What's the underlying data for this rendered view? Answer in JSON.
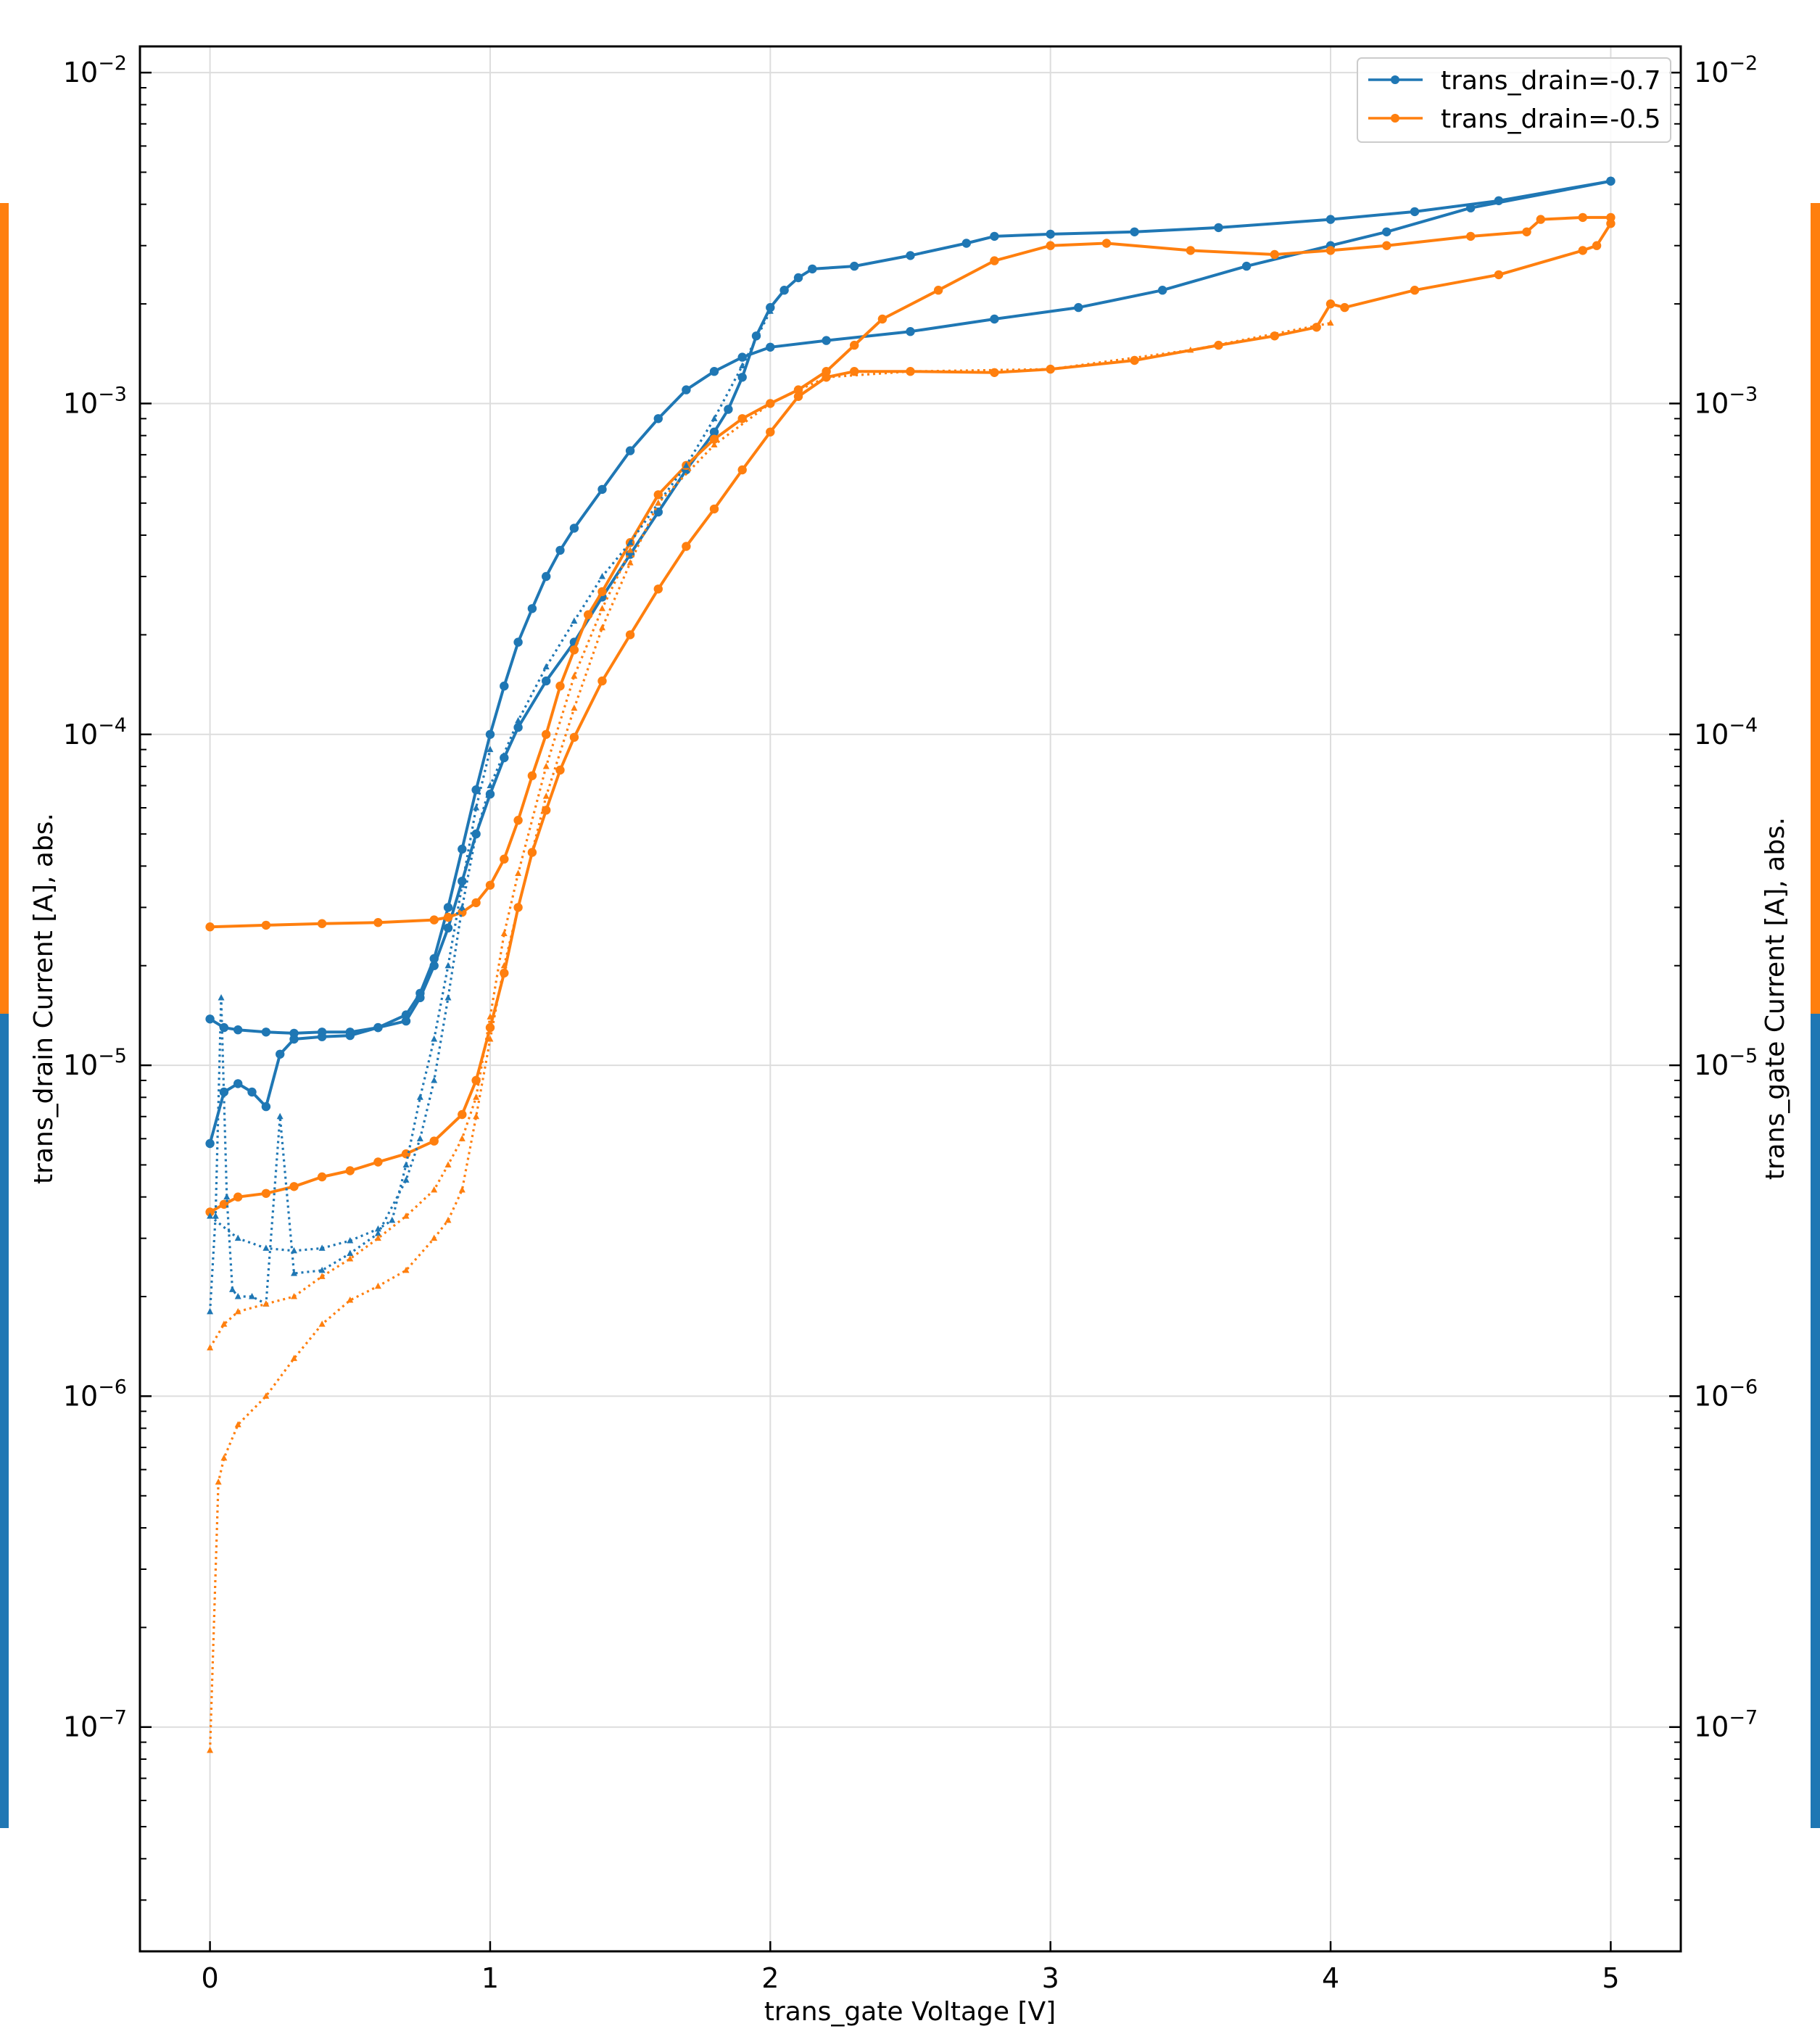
{
  "chart_data": {
    "type": "line",
    "title": "",
    "xlabel": "trans_gate Voltage [V]",
    "ylabel_left": "trans_drain Current [A], abs.",
    "ylabel_right": "trans_gate Current [A], abs.",
    "xlim": [
      -0.25,
      5.25
    ],
    "ylim": [
      2.1e-08,
      0.012
    ],
    "yscale": "log",
    "grid": true,
    "legend_position": "top-right",
    "x_ticks": [
      {
        "value": 0,
        "label": "0"
      },
      {
        "value": 1,
        "label": "1"
      },
      {
        "value": 2,
        "label": "2"
      },
      {
        "value": 3,
        "label": "3"
      },
      {
        "value": 4,
        "label": "4"
      },
      {
        "value": 5,
        "label": "5"
      }
    ],
    "y_ticks": [
      {
        "value": 1e-07,
        "label": "10",
        "exp": "−7"
      },
      {
        "value": 1e-06,
        "label": "10",
        "exp": "−6"
      },
      {
        "value": 1e-05,
        "label": "10",
        "exp": "−5"
      },
      {
        "value": 0.0001,
        "label": "10",
        "exp": "−4"
      },
      {
        "value": 0.001,
        "label": "10",
        "exp": "−3"
      },
      {
        "value": 0.01,
        "label": "10",
        "exp": "−2"
      }
    ],
    "legend": [
      {
        "label": "trans_drain=-0.7",
        "color": "#1f77b4"
      },
      {
        "label": "trans_drain=-0.5",
        "color": "#ff7f0e"
      }
    ],
    "series": [
      {
        "name": "trans_drain=-0.7",
        "color": "#1f77b4",
        "quantity": "drain",
        "style": "solid",
        "sweep": "forward",
        "points": [
          [
            0,
            5.8e-06
          ],
          [
            0.05,
            8.3e-06
          ],
          [
            0.1,
            8.8e-06
          ],
          [
            0.15,
            8.3e-06
          ],
          [
            0.2,
            7.5e-06
          ],
          [
            0.25,
            1.08e-05
          ],
          [
            0.3,
            1.2e-05
          ],
          [
            0.4,
            1.22e-05
          ],
          [
            0.5,
            1.23e-05
          ],
          [
            0.6,
            1.3e-05
          ],
          [
            0.7,
            1.36e-05
          ],
          [
            0.75,
            1.6e-05
          ],
          [
            0.8,
            2e-05
          ],
          [
            0.85,
            2.6e-05
          ],
          [
            0.9,
            3.6e-05
          ],
          [
            0.95,
            5e-05
          ],
          [
            1.0,
            6.6e-05
          ],
          [
            1.05,
            8.5e-05
          ],
          [
            1.1,
            0.000105
          ],
          [
            1.2,
            0.000145
          ],
          [
            1.3,
            0.00019
          ],
          [
            1.4,
            0.00026
          ],
          [
            1.5,
            0.00035
          ],
          [
            1.6,
            0.00047
          ],
          [
            1.7,
            0.00063
          ],
          [
            1.8,
            0.00082
          ],
          [
            1.85,
            0.00096
          ],
          [
            1.9,
            0.0012
          ],
          [
            1.95,
            0.0016
          ],
          [
            2.0,
            0.00195
          ],
          [
            2.05,
            0.0022
          ],
          [
            2.1,
            0.0024
          ],
          [
            2.15,
            0.00255
          ],
          [
            2.3,
            0.0026
          ],
          [
            2.5,
            0.0028
          ],
          [
            2.7,
            0.00305
          ],
          [
            2.8,
            0.0032
          ],
          [
            3.0,
            0.00325
          ],
          [
            3.3,
            0.0033
          ],
          [
            3.6,
            0.0034
          ],
          [
            4.0,
            0.0036
          ],
          [
            4.3,
            0.0038
          ],
          [
            4.6,
            0.0041
          ],
          [
            5.0,
            0.0047
          ]
        ]
      },
      {
        "name": "trans_drain=-0.7",
        "color": "#1f77b4",
        "quantity": "drain",
        "style": "solid",
        "sweep": "reverse",
        "points": [
          [
            5.0,
            0.0047
          ],
          [
            4.5,
            0.0039
          ],
          [
            4.2,
            0.0033
          ],
          [
            4.0,
            0.003
          ],
          [
            3.7,
            0.0026
          ],
          [
            3.4,
            0.0022
          ],
          [
            3.1,
            0.00195
          ],
          [
            2.8,
            0.0018
          ],
          [
            2.5,
            0.00165
          ],
          [
            2.2,
            0.00155
          ],
          [
            2.0,
            0.00148
          ],
          [
            1.9,
            0.00138
          ],
          [
            1.8,
            0.00125
          ],
          [
            1.7,
            0.0011
          ],
          [
            1.6,
            0.0009
          ],
          [
            1.5,
            0.00072
          ],
          [
            1.4,
            0.00055
          ],
          [
            1.3,
            0.00042
          ],
          [
            1.25,
            0.00036
          ],
          [
            1.2,
            0.0003
          ],
          [
            1.15,
            0.00024
          ],
          [
            1.1,
            0.00019
          ],
          [
            1.05,
            0.00014
          ],
          [
            1.0,
            0.0001
          ],
          [
            0.95,
            6.8e-05
          ],
          [
            0.9,
            4.5e-05
          ],
          [
            0.85,
            3e-05
          ],
          [
            0.8,
            2.1e-05
          ],
          [
            0.75,
            1.65e-05
          ],
          [
            0.7,
            1.42e-05
          ],
          [
            0.6,
            1.3e-05
          ],
          [
            0.5,
            1.26e-05
          ],
          [
            0.4,
            1.26e-05
          ],
          [
            0.3,
            1.25e-05
          ],
          [
            0.2,
            1.26e-05
          ],
          [
            0.1,
            1.28e-05
          ],
          [
            0.05,
            1.3e-05
          ],
          [
            0,
            1.38e-05
          ]
        ]
      },
      {
        "name": "trans_drain=-0.5",
        "color": "#ff7f0e",
        "quantity": "drain",
        "style": "solid",
        "sweep": "forward",
        "points": [
          [
            0,
            3.6e-06
          ],
          [
            0.05,
            3.8e-06
          ],
          [
            0.1,
            4e-06
          ],
          [
            0.2,
            4.1e-06
          ],
          [
            0.3,
            4.3e-06
          ],
          [
            0.4,
            4.6e-06
          ],
          [
            0.5,
            4.8e-06
          ],
          [
            0.6,
            5.1e-06
          ],
          [
            0.7,
            5.4e-06
          ],
          [
            0.8,
            5.9e-06
          ],
          [
            0.9,
            7.1e-06
          ],
          [
            0.95,
            9e-06
          ],
          [
            1.0,
            1.3e-05
          ],
          [
            1.05,
            1.9e-05
          ],
          [
            1.1,
            3e-05
          ],
          [
            1.15,
            4.4e-05
          ],
          [
            1.2,
            5.9e-05
          ],
          [
            1.25,
            7.8e-05
          ],
          [
            1.3,
            9.8e-05
          ],
          [
            1.4,
            0.000145
          ],
          [
            1.5,
            0.0002
          ],
          [
            1.6,
            0.000275
          ],
          [
            1.7,
            0.00037
          ],
          [
            1.8,
            0.00048
          ],
          [
            1.9,
            0.00063
          ],
          [
            2.0,
            0.00082
          ],
          [
            2.1,
            0.00105
          ],
          [
            2.2,
            0.0012
          ],
          [
            2.3,
            0.00125
          ],
          [
            2.5,
            0.00125
          ],
          [
            2.8,
            0.00124
          ],
          [
            3.0,
            0.00127
          ],
          [
            3.3,
            0.00135
          ],
          [
            3.6,
            0.0015
          ],
          [
            3.8,
            0.0016
          ],
          [
            3.95,
            0.0017
          ],
          [
            4.0,
            0.002
          ],
          [
            4.05,
            0.00195
          ],
          [
            4.3,
            0.0022
          ],
          [
            4.6,
            0.00245
          ],
          [
            4.9,
            0.0029
          ],
          [
            4.95,
            0.003
          ],
          [
            5.0,
            0.0035
          ]
        ]
      },
      {
        "name": "trans_drain=-0.5",
        "color": "#ff7f0e",
        "quantity": "drain",
        "style": "solid",
        "sweep": "reverse",
        "points": [
          [
            5.0,
            0.00365
          ],
          [
            4.9,
            0.00365
          ],
          [
            4.75,
            0.0036
          ],
          [
            4.7,
            0.0033
          ],
          [
            4.5,
            0.0032
          ],
          [
            4.2,
            0.003
          ],
          [
            4.0,
            0.0029
          ],
          [
            3.8,
            0.00282
          ],
          [
            3.5,
            0.0029
          ],
          [
            3.2,
            0.00305
          ],
          [
            3.0,
            0.003
          ],
          [
            2.8,
            0.0027
          ],
          [
            2.6,
            0.0022
          ],
          [
            2.4,
            0.0018
          ],
          [
            2.3,
            0.0015
          ],
          [
            2.2,
            0.00125
          ],
          [
            2.1,
            0.0011
          ],
          [
            2.0,
            0.001
          ],
          [
            1.9,
            0.0009
          ],
          [
            1.8,
            0.00078
          ],
          [
            1.7,
            0.00065
          ],
          [
            1.6,
            0.00053
          ],
          [
            1.5,
            0.00038
          ],
          [
            1.4,
            0.00027
          ],
          [
            1.35,
            0.00023
          ],
          [
            1.3,
            0.00018
          ],
          [
            1.25,
            0.00014
          ],
          [
            1.2,
            0.0001
          ],
          [
            1.15,
            7.5e-05
          ],
          [
            1.1,
            5.5e-05
          ],
          [
            1.05,
            4.2e-05
          ],
          [
            1.0,
            3.5e-05
          ],
          [
            0.95,
            3.1e-05
          ],
          [
            0.9,
            2.9e-05
          ],
          [
            0.85,
            2.8e-05
          ],
          [
            0.8,
            2.75e-05
          ],
          [
            0.6,
            2.7e-05
          ],
          [
            0.4,
            2.68e-05
          ],
          [
            0.2,
            2.65e-05
          ],
          [
            0,
            2.62e-05
          ]
        ]
      },
      {
        "name": "trans_drain=-0.7",
        "color": "#1f77b4",
        "quantity": "gate",
        "style": "dotted",
        "sweep": "forward",
        "points": [
          [
            0,
            1.8e-06
          ],
          [
            0.02,
            3.5e-06
          ],
          [
            0.04,
            1.6e-05
          ],
          [
            0.06,
            4e-06
          ],
          [
            0.08,
            2.1e-06
          ],
          [
            0.1,
            2e-06
          ],
          [
            0.15,
            2e-06
          ],
          [
            0.2,
            1.9e-06
          ],
          [
            0.25,
            7e-06
          ],
          [
            0.3,
            2.35e-06
          ],
          [
            0.4,
            2.4e-06
          ],
          [
            0.5,
            2.7e-06
          ],
          [
            0.6,
            3.1e-06
          ],
          [
            0.7,
            4.5e-06
          ],
          [
            0.75,
            6e-06
          ],
          [
            0.8,
            9e-06
          ],
          [
            0.85,
            1.6e-05
          ],
          [
            0.9,
            3e-05
          ],
          [
            0.95,
            5e-05
          ],
          [
            1.0,
            7e-05
          ],
          [
            1.1,
            0.00011
          ],
          [
            1.2,
            0.00016
          ],
          [
            1.3,
            0.00022
          ],
          [
            1.4,
            0.0003
          ],
          [
            1.5,
            0.00038
          ],
          [
            1.6,
            0.0005
          ],
          [
            1.7,
            0.00065
          ],
          [
            1.8,
            0.0009
          ],
          [
            1.9,
            0.0013
          ],
          [
            2.0,
            0.0019
          ]
        ]
      },
      {
        "name": "trans_drain=-0.7",
        "color": "#1f77b4",
        "quantity": "gate",
        "style": "dotted",
        "sweep": "reverse",
        "points": [
          [
            0,
            3.5e-06
          ],
          [
            0.1,
            3e-06
          ],
          [
            0.2,
            2.8e-06
          ],
          [
            0.3,
            2.75e-06
          ],
          [
            0.4,
            2.8e-06
          ],
          [
            0.5,
            2.95e-06
          ],
          [
            0.6,
            3.2e-06
          ],
          [
            0.65,
            3.4e-06
          ],
          [
            0.7,
            5e-06
          ],
          [
            0.75,
            8e-06
          ],
          [
            0.8,
            1.2e-05
          ],
          [
            0.85,
            2e-05
          ],
          [
            0.9,
            3.5e-05
          ],
          [
            0.95,
            6e-05
          ],
          [
            1.0,
            9e-05
          ]
        ]
      },
      {
        "name": "trans_drain=-0.5",
        "color": "#ff7f0e",
        "quantity": "gate",
        "style": "dotted",
        "sweep": "forward",
        "points": [
          [
            0,
            8.5e-08
          ],
          [
            0.03,
            5.5e-07
          ],
          [
            0.05,
            6.5e-07
          ],
          [
            0.1,
            8.2e-07
          ],
          [
            0.2,
            1e-06
          ],
          [
            0.3,
            1.3e-06
          ],
          [
            0.4,
            1.65e-06
          ],
          [
            0.5,
            1.95e-06
          ],
          [
            0.6,
            2.15e-06
          ],
          [
            0.7,
            2.4e-06
          ],
          [
            0.8,
            3e-06
          ],
          [
            0.85,
            3.4e-06
          ],
          [
            0.9,
            4.2e-06
          ],
          [
            0.95,
            7e-06
          ],
          [
            1.0,
            1.2e-05
          ],
          [
            1.05,
            2e-05
          ],
          [
            1.1,
            3e-05
          ],
          [
            1.2,
            6.5e-05
          ],
          [
            1.3,
            0.00012
          ],
          [
            1.4,
            0.00021
          ],
          [
            1.5,
            0.00033
          ],
          [
            1.6,
            0.0005
          ],
          [
            1.8,
            0.00075
          ],
          [
            2.0,
            0.001
          ],
          [
            2.2,
            0.0012
          ],
          [
            2.5,
            0.00125
          ],
          [
            3.0,
            0.00127
          ],
          [
            3.5,
            0.00145
          ],
          [
            4.0,
            0.00175
          ]
        ]
      },
      {
        "name": "trans_drain=-0.5",
        "color": "#ff7f0e",
        "quantity": "gate",
        "style": "dotted",
        "sweep": "reverse",
        "points": [
          [
            0,
            1.4e-06
          ],
          [
            0.05,
            1.65e-06
          ],
          [
            0.1,
            1.8e-06
          ],
          [
            0.2,
            1.9e-06
          ],
          [
            0.3,
            2e-06
          ],
          [
            0.4,
            2.3e-06
          ],
          [
            0.5,
            2.6e-06
          ],
          [
            0.6,
            3e-06
          ],
          [
            0.7,
            3.5e-06
          ],
          [
            0.8,
            4.2e-06
          ],
          [
            0.85,
            5e-06
          ],
          [
            0.9,
            6e-06
          ],
          [
            0.95,
            8e-06
          ],
          [
            1.0,
            1.4e-05
          ],
          [
            1.05,
            2.5e-05
          ],
          [
            1.1,
            3.8e-05
          ],
          [
            1.2,
            8e-05
          ],
          [
            1.3,
            0.00015
          ],
          [
            1.4,
            0.00024
          ],
          [
            1.5,
            0.00036
          ]
        ]
      }
    ]
  }
}
